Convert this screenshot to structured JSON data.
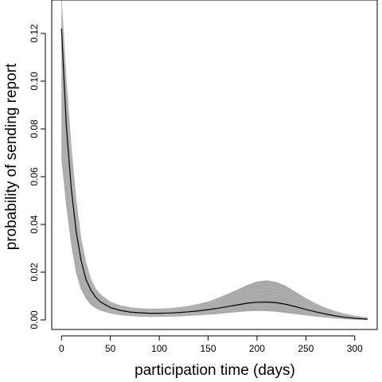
{
  "chart_data": {
    "type": "line",
    "title": "",
    "xlabel": "participation time (days)",
    "ylabel": "probability of sending report",
    "xlim": [
      -10,
      323
    ],
    "ylim": [
      -0.004,
      0.134
    ],
    "xticks": [
      0,
      50,
      100,
      150,
      200,
      250,
      300
    ],
    "xtick_labels": [
      "0",
      "50",
      "100",
      "150",
      "200",
      "250",
      "300"
    ],
    "yticks": [
      0.0,
      0.02,
      0.04,
      0.06,
      0.08,
      0.1,
      0.12
    ],
    "ytick_labels": [
      "0.00",
      "0.02",
      "0.04",
      "0.06",
      "0.08",
      "0.10",
      "0.12"
    ],
    "grid": false,
    "legend": "none",
    "colors": {
      "main": "#000000",
      "band": "#a6a6a6",
      "background": "#ffffff"
    },
    "series": [
      {
        "role": "point-estimate",
        "x": [
          0,
          5,
          10,
          15,
          20,
          25,
          30,
          35,
          40,
          50,
          60,
          70,
          80,
          90,
          100,
          110,
          120,
          130,
          140,
          150,
          160,
          170,
          180,
          190,
          200,
          210,
          220,
          230,
          240,
          250,
          260,
          270,
          280,
          290,
          300,
          310,
          313
        ],
        "y": [
          0.122,
          0.081,
          0.055,
          0.037,
          0.025,
          0.017,
          0.0125,
          0.0095,
          0.0075,
          0.0052,
          0.004,
          0.0033,
          0.003,
          0.0028,
          0.0028,
          0.0029,
          0.0031,
          0.0034,
          0.0038,
          0.0043,
          0.0049,
          0.0056,
          0.0063,
          0.007,
          0.0074,
          0.0075,
          0.0072,
          0.0065,
          0.0055,
          0.0044,
          0.0034,
          0.0025,
          0.0017,
          0.0011,
          0.0007,
          0.0004,
          0.0003
        ]
      },
      {
        "role": "band-upper",
        "x": [
          0,
          5,
          10,
          15,
          20,
          25,
          30,
          35,
          40,
          50,
          60,
          70,
          80,
          90,
          100,
          110,
          120,
          130,
          140,
          150,
          160,
          170,
          180,
          190,
          200,
          210,
          220,
          230,
          240,
          250,
          260,
          270,
          280,
          290,
          300,
          310,
          313
        ],
        "y": [
          0.134,
          0.1,
          0.072,
          0.05,
          0.034,
          0.024,
          0.017,
          0.013,
          0.0105,
          0.0075,
          0.006,
          0.0052,
          0.0048,
          0.0046,
          0.0046,
          0.0048,
          0.0052,
          0.0058,
          0.0066,
          0.0076,
          0.0091,
          0.0108,
          0.0126,
          0.0145,
          0.016,
          0.0165,
          0.0158,
          0.014,
          0.0115,
          0.009,
          0.0068,
          0.005,
          0.0036,
          0.0025,
          0.0017,
          0.0011,
          0.001
        ]
      },
      {
        "role": "band-lower",
        "x": [
          0,
          5,
          10,
          15,
          20,
          25,
          30,
          35,
          40,
          50,
          60,
          70,
          80,
          90,
          100,
          110,
          120,
          130,
          140,
          150,
          160,
          170,
          180,
          190,
          200,
          210,
          220,
          230,
          240,
          250,
          260,
          270,
          280,
          290,
          300,
          310,
          313
        ],
        "y": [
          0.068,
          0.048,
          0.032,
          0.02,
          0.013,
          0.009,
          0.0065,
          0.005,
          0.004,
          0.0028,
          0.0021,
          0.0017,
          0.0015,
          0.0014,
          0.0014,
          0.0015,
          0.0016,
          0.0018,
          0.002,
          0.0023,
          0.0026,
          0.003,
          0.0034,
          0.0037,
          0.0039,
          0.0038,
          0.0035,
          0.003,
          0.0025,
          0.002,
          0.0015,
          0.0011,
          0.0007,
          0.0004,
          0.0002,
          0.0001,
          0.0001
        ]
      }
    ]
  }
}
